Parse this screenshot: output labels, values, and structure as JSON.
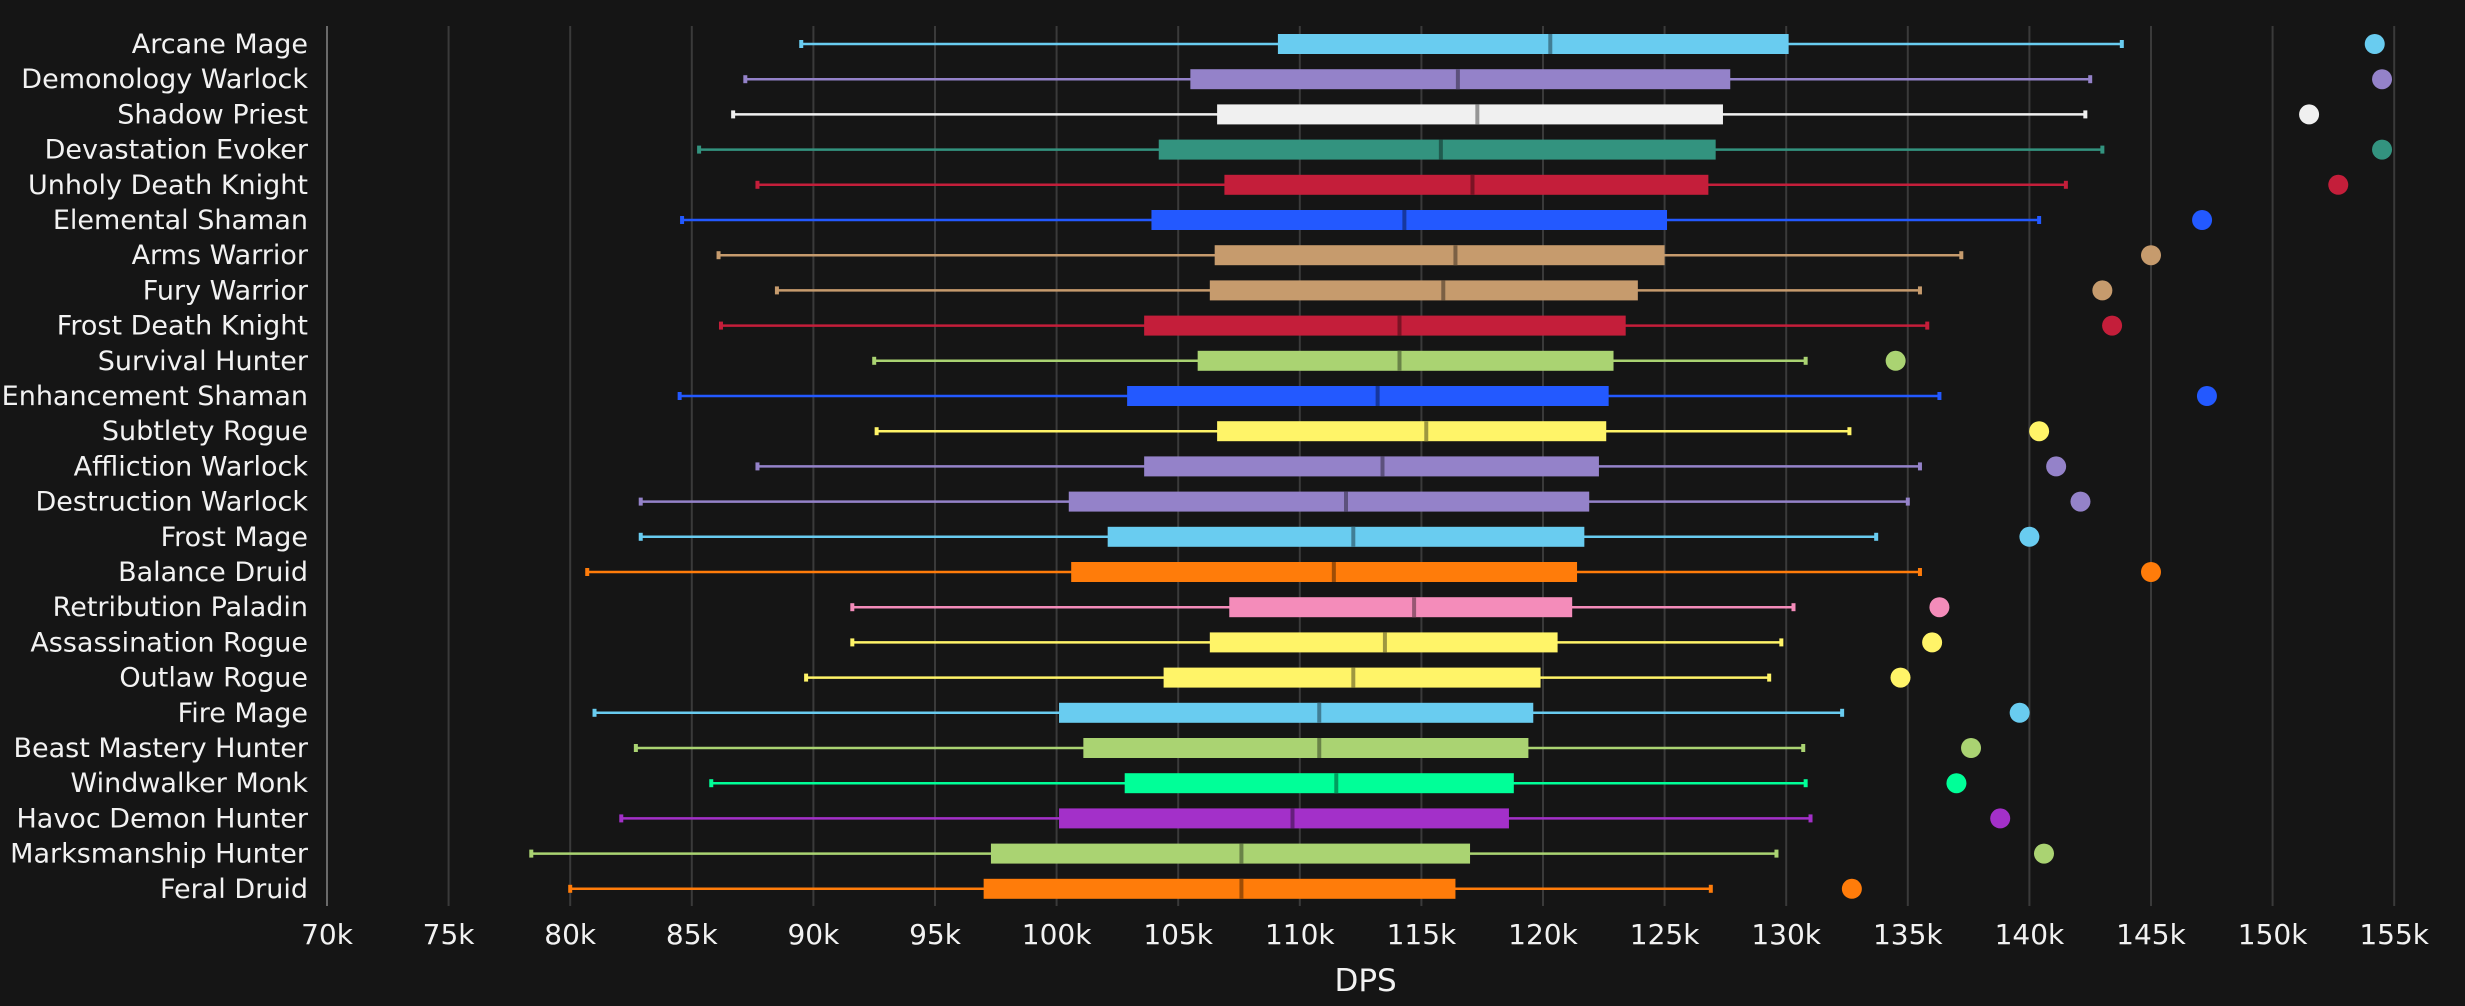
{
  "chart_data": {
    "type": "boxplot",
    "title": "",
    "xlabel": "DPS",
    "ylabel": "",
    "xlim": [
      70000,
      157000
    ],
    "x_ticks": [
      70000,
      75000,
      80000,
      85000,
      90000,
      95000,
      100000,
      105000,
      110000,
      115000,
      120000,
      125000,
      130000,
      135000,
      140000,
      145000,
      150000,
      155000
    ],
    "x_tick_labels": [
      "70k",
      "75k",
      "80k",
      "85k",
      "90k",
      "95k",
      "100k",
      "105k",
      "110k",
      "115k",
      "120k",
      "125k",
      "130k",
      "135k",
      "140k",
      "145k",
      "150k",
      "155k"
    ],
    "grid": true,
    "series": [
      {
        "name": "Arcane Mage",
        "color": "#69ccf0",
        "whisker_low": 89500,
        "q1": 109100,
        "median": 120300,
        "q3": 130100,
        "whisker_high": 143800,
        "outlier": 154200
      },
      {
        "name": "Demonology Warlock",
        "color": "#9482c9",
        "whisker_low": 87200,
        "q1": 105500,
        "median": 116500,
        "q3": 127700,
        "whisker_high": 142500,
        "outlier": 154500
      },
      {
        "name": "Shadow Priest",
        "color": "#f0f0f0",
        "whisker_low": 86700,
        "q1": 106600,
        "median": 117300,
        "q3": 127400,
        "whisker_high": 142300,
        "outlier": 151500
      },
      {
        "name": "Devastation Evoker",
        "color": "#33937f",
        "whisker_low": 85300,
        "q1": 104200,
        "median": 115800,
        "q3": 127100,
        "whisker_high": 143000,
        "outlier": 154500
      },
      {
        "name": "Unholy Death Knight",
        "color": "#c41e3a",
        "whisker_low": 87700,
        "q1": 106900,
        "median": 117100,
        "q3": 126800,
        "whisker_high": 141500,
        "outlier": 152700
      },
      {
        "name": "Elemental Shaman",
        "color": "#2359ff",
        "whisker_low": 84600,
        "q1": 103900,
        "median": 114300,
        "q3": 125100,
        "whisker_high": 140400,
        "outlier": 147100
      },
      {
        "name": "Arms Warrior",
        "color": "#c69b6d",
        "whisker_low": 86100,
        "q1": 106500,
        "median": 116400,
        "q3": 125000,
        "whisker_high": 137200,
        "outlier": 145000
      },
      {
        "name": "Fury Warrior",
        "color": "#c69b6d",
        "whisker_low": 88500,
        "q1": 106300,
        "median": 115900,
        "q3": 123900,
        "whisker_high": 135500,
        "outlier": 143000
      },
      {
        "name": "Frost Death Knight",
        "color": "#c41e3a",
        "whisker_low": 86200,
        "q1": 103600,
        "median": 114100,
        "q3": 123400,
        "whisker_high": 135800,
        "outlier": 143400
      },
      {
        "name": "Survival Hunter",
        "color": "#aad372",
        "whisker_low": 92500,
        "q1": 105800,
        "median": 114100,
        "q3": 122900,
        "whisker_high": 130800,
        "outlier": 134500
      },
      {
        "name": "Enhancement Shaman",
        "color": "#2359ff",
        "whisker_low": 84500,
        "q1": 102900,
        "median": 113200,
        "q3": 122700,
        "whisker_high": 136300,
        "outlier": 147300
      },
      {
        "name": "Subtlety Rogue",
        "color": "#fff468",
        "whisker_low": 92600,
        "q1": 106600,
        "median": 115200,
        "q3": 122600,
        "whisker_high": 132600,
        "outlier": 140400
      },
      {
        "name": "Affliction Warlock",
        "color": "#9482c9",
        "whisker_low": 87700,
        "q1": 103600,
        "median": 113400,
        "q3": 122300,
        "whisker_high": 135500,
        "outlier": 141100
      },
      {
        "name": "Destruction Warlock",
        "color": "#9482c9",
        "whisker_low": 82900,
        "q1": 100500,
        "median": 111900,
        "q3": 121900,
        "whisker_high": 135000,
        "outlier": 142100
      },
      {
        "name": "Frost Mage",
        "color": "#69ccf0",
        "whisker_low": 82900,
        "q1": 102100,
        "median": 112200,
        "q3": 121700,
        "whisker_high": 133700,
        "outlier": 140000
      },
      {
        "name": "Balance Druid",
        "color": "#ff7c0a",
        "whisker_low": 80700,
        "q1": 100600,
        "median": 111400,
        "q3": 121400,
        "whisker_high": 135500,
        "outlier": 145000
      },
      {
        "name": "Retribution Paladin",
        "color": "#f48cba",
        "whisker_low": 91600,
        "q1": 107100,
        "median": 114700,
        "q3": 121200,
        "whisker_high": 130300,
        "outlier": 136300
      },
      {
        "name": "Assassination Rogue",
        "color": "#fff468",
        "whisker_low": 91600,
        "q1": 106300,
        "median": 113500,
        "q3": 120600,
        "whisker_high": 129800,
        "outlier": 136000
      },
      {
        "name": "Outlaw Rogue",
        "color": "#fff468",
        "whisker_low": 89700,
        "q1": 104400,
        "median": 112200,
        "q3": 119900,
        "whisker_high": 129300,
        "outlier": 134700
      },
      {
        "name": "Fire Mage",
        "color": "#69ccf0",
        "whisker_low": 81000,
        "q1": 100100,
        "median": 110800,
        "q3": 119600,
        "whisker_high": 132300,
        "outlier": 139600
      },
      {
        "name": "Beast Mastery Hunter",
        "color": "#aad372",
        "whisker_low": 82700,
        "q1": 101100,
        "median": 110800,
        "q3": 119400,
        "whisker_high": 130700,
        "outlier": 137600
      },
      {
        "name": "Windwalker Monk",
        "color": "#00ff98",
        "whisker_low": 85800,
        "q1": 102800,
        "median": 111500,
        "q3": 118800,
        "whisker_high": 130800,
        "outlier": 137000
      },
      {
        "name": "Havoc Demon Hunter",
        "color": "#a330c9",
        "whisker_low": 82100,
        "q1": 100100,
        "median": 109700,
        "q3": 118600,
        "whisker_high": 131000,
        "outlier": 138800
      },
      {
        "name": "Marksmanship Hunter",
        "color": "#aad372",
        "whisker_low": 78400,
        "q1": 97300,
        "median": 107600,
        "q3": 117000,
        "whisker_high": 129600,
        "outlier": 140600
      },
      {
        "name": "Feral Druid",
        "color": "#ff7c0a",
        "whisker_low": 80000,
        "q1": 97000,
        "median": 107600,
        "q3": 116400,
        "whisker_high": 126900,
        "outlier": 132700
      }
    ]
  },
  "colors": {
    "background": "#151515",
    "grid": "#3a3a3a",
    "text": "#f2f2f2"
  }
}
